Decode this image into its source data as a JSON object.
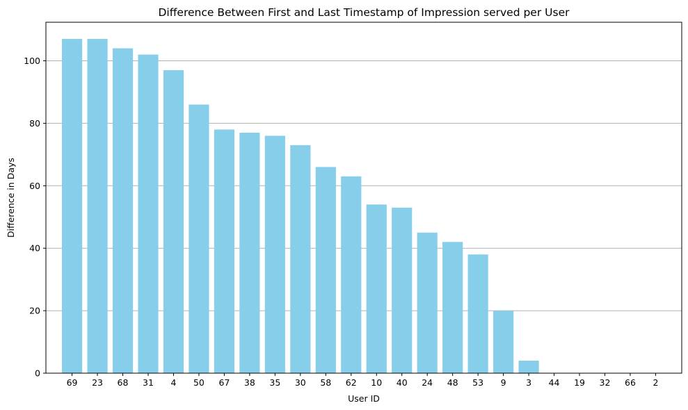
{
  "chart_data": {
    "type": "bar",
    "title": "Difference Between First and Last Timestamp of Impression served per User",
    "xlabel": "User ID",
    "ylabel": "Difference in Days",
    "categories": [
      "69",
      "23",
      "68",
      "31",
      "4",
      "50",
      "67",
      "38",
      "35",
      "30",
      "58",
      "62",
      "10",
      "40",
      "24",
      "48",
      "53",
      "9",
      "3",
      "44",
      "19",
      "32",
      "66",
      "2"
    ],
    "values": [
      107,
      107,
      104,
      102,
      97,
      86,
      78,
      77,
      76,
      73,
      66,
      63,
      54,
      53,
      45,
      42,
      38,
      20,
      4,
      0,
      0,
      0,
      0,
      0
    ],
    "ylim": [
      0,
      112.35
    ],
    "yticks": [
      0,
      20,
      40,
      60,
      80,
      100
    ],
    "grid": "y-axis, major ticks",
    "bar_color": "#87ceeb",
    "grid_color": "#b0b0b0"
  }
}
